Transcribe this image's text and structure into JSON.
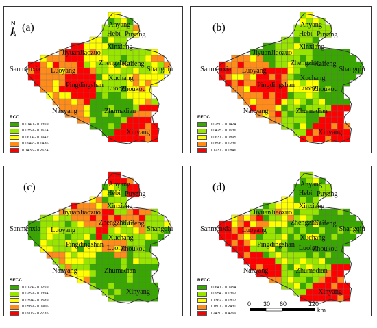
{
  "panels": [
    {
      "label": "(a)",
      "legend_title": "RCC",
      "legend": [
        "0.0140 - 0.0359",
        "0.0359 - 0.0614",
        "0.0614 - 0.0942",
        "0.0942 - 0.1436",
        "0.1436 - 0.2674"
      ],
      "cities": [
        "Anyang",
        "Hebi",
        "Puyang",
        "Xinxiang",
        "Jiyuan",
        "Jiaozuo",
        "Zhengzhou",
        "Kaifeng",
        "Sanmenxia",
        "Luoyang",
        "Shangqiu",
        "Xuchang",
        "Pingdingshan",
        "Luohe",
        "Zhoukou",
        "Nanyang",
        "Zhumadian",
        "Xinyang"
      ]
    },
    {
      "label": "(b)",
      "legend_title": "EECC",
      "legend": [
        "0.0250 - 0.0424",
        "0.0425 - 0.0636",
        "0.0637 - 0.0895",
        "0.0896 - 0.1236",
        "0.1237 - 0.1846"
      ],
      "cities": [
        "Anyang",
        "Hebi",
        "Puyang",
        "Xinxiang",
        "Jiyuan",
        "Jiaozuo",
        "Zhengzhou",
        "Kaifeng",
        "Sanmenxia",
        "Luoyang",
        "Shangqiu",
        "Xuchang",
        "Pingdingshan",
        "Luohe",
        "Zhoukou",
        "Nanyang",
        "Zhumadian",
        "Xinyang"
      ]
    },
    {
      "label": "(c)",
      "legend_title": "SECC",
      "legend": [
        "0.0124 - 0.0259",
        "0.0259 - 0.0394",
        "0.0394 - 0.0589",
        "0.0589 - 0.0906",
        "0.0906 - 0.2735"
      ],
      "cities": [
        "Anyang",
        "Hebi",
        "Puyang",
        "Xinxiang",
        "Jiyuan",
        "Jiaozuo",
        "Zhengzhou",
        "Kaifeng",
        "Sanmenxia",
        "Luoyang",
        "Shangqiu",
        "Xuchang",
        "Pingdingshan",
        "Luohe",
        "Zhoukou",
        "Nanyang",
        "Zhumadian",
        "Xinyang"
      ]
    },
    {
      "label": "(d)",
      "legend_title": "RECC",
      "legend": [
        "0.0641 - 0.0954",
        "0.0954 - 0.1362",
        "0.1362 - 0.1807",
        "0.1807 - 0.2430",
        "0.2430 - 0.4269"
      ],
      "cities": [
        "Anyang",
        "Hebi",
        "Puyang",
        "Xinxiang",
        "Jiyuan",
        "Jiaozuo",
        "Zhengzhou",
        "Kaifeng",
        "Sanmenxia",
        "Luoyang",
        "Shangqiu",
        "Xuchang",
        "Pingdingshan",
        "Luohe",
        "Zhoukou",
        "Nanyang",
        "Zhumadian",
        "Xinyang"
      ]
    }
  ],
  "legend_colors": [
    "#38a800",
    "#98e600",
    "#ffff00",
    "#ff8c1a",
    "#ff0000"
  ],
  "north_label": "N",
  "scale": {
    "ticks": [
      "0",
      "30",
      "60",
      "120"
    ],
    "unit": "km"
  }
}
